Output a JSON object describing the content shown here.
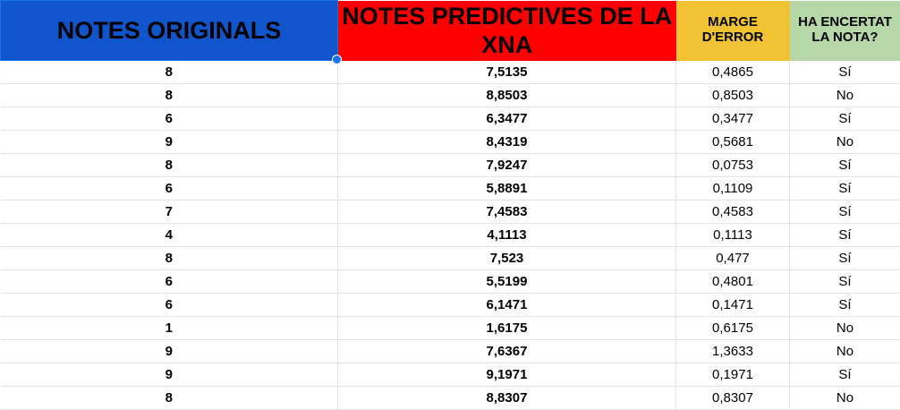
{
  "headers": {
    "original": "NOTES ORIGINALS",
    "predicted": "NOTES PREDICTIVES DE LA XNA",
    "error": "MARGE D'ERROR",
    "hit": "HA ENCERTAT LA NOTA?"
  },
  "colors": {
    "original_header": "#1155cc",
    "predicted_header": "#ff0000",
    "error_header": "#f1c232",
    "hit_header": "#b6d7a8"
  },
  "rows": [
    {
      "original": "8",
      "predicted": "7,5135",
      "error": "0,4865",
      "hit": "Sí"
    },
    {
      "original": "8",
      "predicted": "8,8503",
      "error": "0,8503",
      "hit": "No"
    },
    {
      "original": "6",
      "predicted": "6,3477",
      "error": "0,3477",
      "hit": "Sí"
    },
    {
      "original": "9",
      "predicted": "8,4319",
      "error": "0,5681",
      "hit": "No"
    },
    {
      "original": "8",
      "predicted": "7,9247",
      "error": "0,0753",
      "hit": "Sí"
    },
    {
      "original": "6",
      "predicted": "5,8891",
      "error": "0,1109",
      "hit": "Sí"
    },
    {
      "original": "7",
      "predicted": "7,4583",
      "error": "0,4583",
      "hit": "Sí"
    },
    {
      "original": "4",
      "predicted": "4,1113",
      "error": "0,1113",
      "hit": "Sí"
    },
    {
      "original": "8",
      "predicted": "7,523",
      "error": "0,477",
      "hit": "Sí"
    },
    {
      "original": "6",
      "predicted": "5,5199",
      "error": "0,4801",
      "hit": "Sí"
    },
    {
      "original": "6",
      "predicted": "6,1471",
      "error": "0,1471",
      "hit": "Sí"
    },
    {
      "original": "1",
      "predicted": "1,6175",
      "error": "0,6175",
      "hit": "No"
    },
    {
      "original": "9",
      "predicted": "7,6367",
      "error": "1,3633",
      "hit": "No"
    },
    {
      "original": "9",
      "predicted": "9,1971",
      "error": "0,1971",
      "hit": "Sí"
    },
    {
      "original": "8",
      "predicted": "8,8307",
      "error": "0,8307",
      "hit": "No"
    }
  ]
}
